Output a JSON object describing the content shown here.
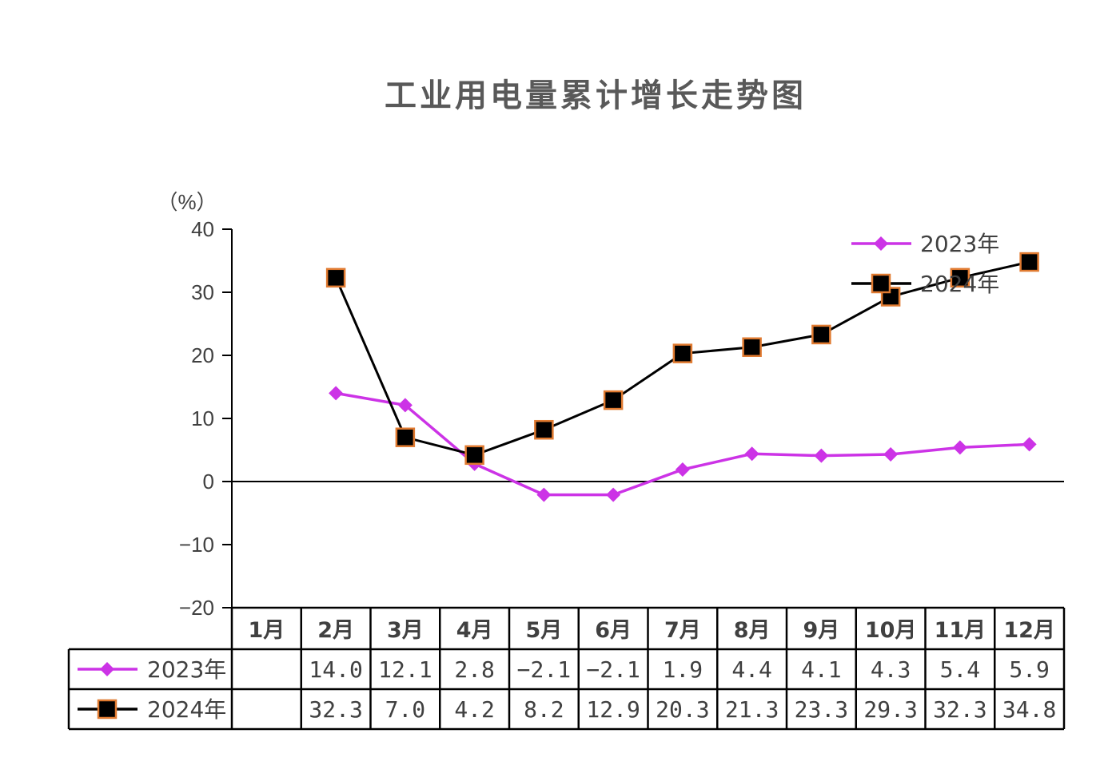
{
  "chart_data": {
    "type": "line",
    "title": "工业用电量累计增长走势图",
    "ylabel": "（%）",
    "ylim": [
      -20,
      40
    ],
    "yticks": [
      40,
      30,
      20,
      10,
      0,
      -10,
      -20
    ],
    "ytick_labels": [
      "40",
      "30",
      "20",
      "10",
      "0",
      "−10",
      "−20"
    ],
    "categories": [
      "1月",
      "2月",
      "3月",
      "4月",
      "5月",
      "6月",
      "7月",
      "8月",
      "9月",
      "10月",
      "11月",
      "12月"
    ],
    "legend_position": "top-right",
    "series": [
      {
        "name": "2023年",
        "color": "#CC33E6",
        "marker": "diamond",
        "values": [
          null,
          14.0,
          12.1,
          2.8,
          -2.1,
          -2.1,
          1.9,
          4.4,
          4.1,
          4.3,
          5.4,
          5.9
        ],
        "labels": [
          "",
          "14.0",
          "12.1",
          "2.8",
          "−2.1",
          "−2.1",
          "1.9",
          "4.4",
          "4.1",
          "4.3",
          "5.4",
          "5.9"
        ]
      },
      {
        "name": "2024年",
        "color": "#000000",
        "marker": "square",
        "marker_edge": "#E07A30",
        "values": [
          null,
          32.3,
          7.0,
          4.2,
          8.2,
          12.9,
          20.3,
          21.3,
          23.3,
          29.3,
          32.3,
          34.8
        ],
        "labels": [
          "",
          "32.3",
          "7.0",
          "4.2",
          "8.2",
          "12.9",
          "20.3",
          "21.3",
          "23.3",
          "29.3",
          "32.3",
          "34.8"
        ]
      }
    ]
  }
}
